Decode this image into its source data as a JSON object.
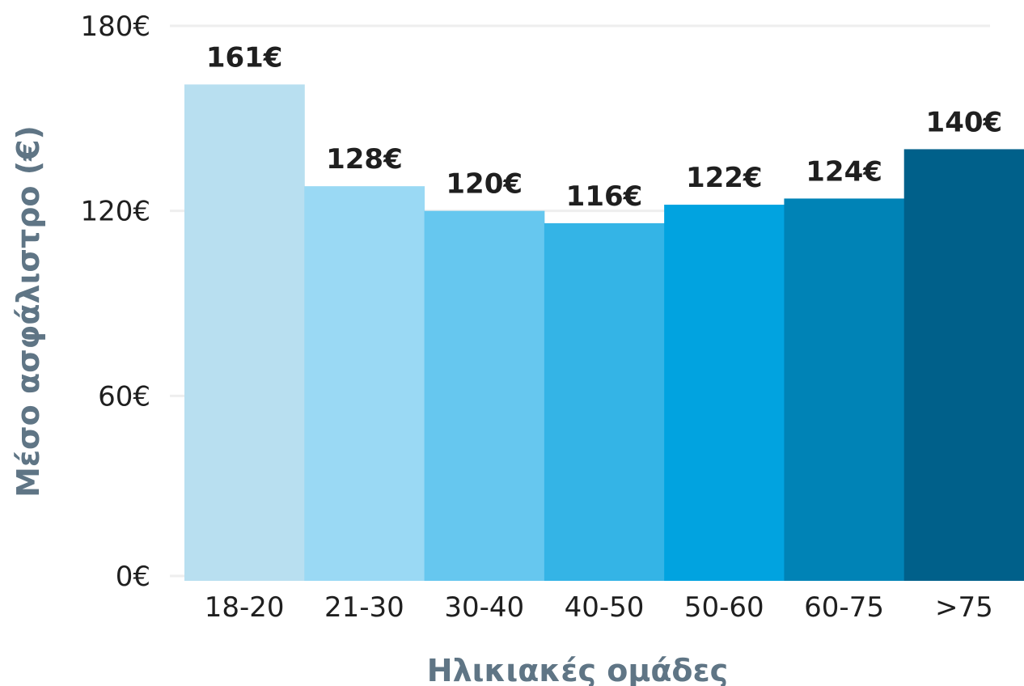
{
  "chart_data": {
    "type": "bar",
    "title": "",
    "xlabel": "Ηλικιακές ομάδες",
    "ylabel": "Μέσο ασφάλιστρο (€)",
    "categories": [
      "18-20",
      "21-30",
      "30-40",
      "40-50",
      "50-60",
      "60-75",
      ">75"
    ],
    "values": [
      161,
      128,
      120,
      116,
      122,
      124,
      140
    ],
    "value_labels": [
      "161€",
      "128€",
      "120€",
      "116€",
      "122€",
      "124€",
      "140€"
    ],
    "bar_colors": [
      "#b8dff0",
      "#9ad9f4",
      "#66c7ef",
      "#34b4e6",
      "#01a3e0",
      "#0083b6",
      "#00608a"
    ],
    "ylim": [
      0,
      180
    ],
    "yticks": [
      0,
      60,
      120,
      180
    ],
    "ytick_labels": [
      "0€",
      "60€",
      "120€",
      "180€"
    ],
    "grid": "horizontal",
    "legend": "none"
  },
  "colors": {
    "gridline": "#eeeeee",
    "axis_title": "#5f7585",
    "text": "#1f1f1f"
  }
}
